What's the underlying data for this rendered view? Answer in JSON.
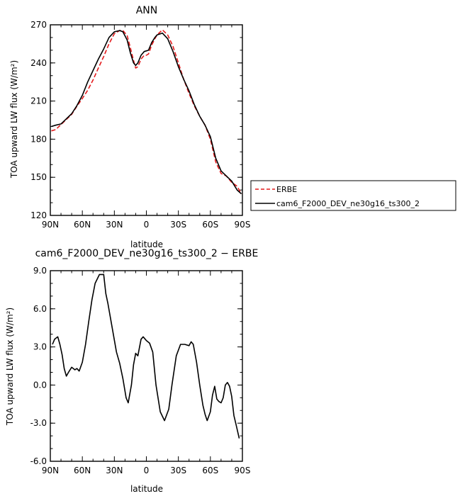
{
  "chart_data": [
    {
      "type": "line",
      "title": "ANN",
      "xlabel": "latitude",
      "ylabel": "TOA upward LW flux (W/m²)",
      "xlim": [
        90,
        -90
      ],
      "ylim": [
        120,
        270
      ],
      "xticks": [
        90,
        60,
        30,
        0,
        -30,
        -60,
        -90
      ],
      "xtick_labels": [
        "90N",
        "60N",
        "30N",
        "0",
        "30S",
        "60S",
        "90S"
      ],
      "yticks": [
        120,
        150,
        180,
        210,
        240,
        270
      ],
      "ytick_labels": [
        "120",
        "150",
        "180",
        "210",
        "240",
        "270"
      ],
      "grid": false,
      "legend_position": "right",
      "series": [
        {
          "name": "ERBE",
          "color": "#e41a1c",
          "dashed": true,
          "x": [
            89,
            85,
            80,
            75,
            70,
            65,
            60,
            55,
            50,
            45,
            40,
            35,
            30,
            25,
            22,
            18,
            15,
            12,
            10,
            8,
            5,
            2,
            0,
            -2,
            -5,
            -8,
            -10,
            -15,
            -20,
            -25,
            -30,
            -35,
            -40,
            -45,
            -50,
            -55,
            -60,
            -65,
            -70,
            -75,
            -80,
            -85,
            -89
          ],
          "y": [
            186.5,
            187.5,
            191.5,
            195.5,
            199.5,
            206,
            212,
            218.5,
            226.5,
            236,
            245,
            255,
            263,
            265.5,
            265.5,
            261.5,
            252,
            242,
            236,
            237,
            243,
            246,
            246,
            247,
            254,
            259,
            262,
            266,
            262,
            253,
            240,
            227,
            216,
            206,
            198,
            191,
            180,
            162,
            153,
            151,
            146,
            143,
            137
          ]
        },
        {
          "name": "cam6_F2000_DEV_ne30g16_ts300_2",
          "color": "#000000",
          "dashed": false,
          "x": [
            89,
            85,
            80,
            75,
            70,
            65,
            60,
            55,
            50,
            45,
            40,
            35,
            30,
            25,
            22,
            18,
            15,
            12,
            10,
            8,
            5,
            2,
            0,
            -2,
            -5,
            -8,
            -10,
            -15,
            -20,
            -25,
            -30,
            -35,
            -40,
            -45,
            -50,
            -55,
            -60,
            -65,
            -70,
            -75,
            -80,
            -85,
            -89
          ],
          "y": [
            190,
            191,
            192,
            196,
            200,
            206.5,
            214.5,
            225,
            234,
            243,
            251,
            260,
            264.5,
            265.5,
            264.5,
            258,
            248,
            240,
            238,
            240,
            246,
            249,
            249.5,
            250,
            256,
            260,
            262,
            263.5,
            259,
            249,
            237,
            227,
            218,
            207,
            198,
            191,
            182,
            165,
            155,
            151,
            147,
            140,
            137
          ]
        }
      ]
    },
    {
      "type": "line",
      "title": "cam6_F2000_DEV_ne30g16_ts300_2 − ERBE",
      "xlabel": "latitude",
      "ylabel": "TOA upward LW flux (W/m²)",
      "xlim": [
        90,
        -90
      ],
      "ylim": [
        -6.0,
        9.0
      ],
      "xticks": [
        90,
        60,
        30,
        0,
        -30,
        -60,
        -90
      ],
      "xtick_labels": [
        "90N",
        "60N",
        "30N",
        "0",
        "30S",
        "60S",
        "90S"
      ],
      "yticks": [
        -6.0,
        -3.0,
        0.0,
        3.0,
        6.0,
        9.0
      ],
      "ytick_labels": [
        "-6.0",
        "-3.0",
        "0.0",
        "3.0",
        "6.0",
        "9.0"
      ],
      "grid": false,
      "series": [
        {
          "color": "#000000",
          "dashed": false,
          "x": [
            88,
            86,
            83,
            81,
            79,
            77,
            75,
            73,
            70,
            67,
            65,
            63,
            60,
            57,
            54,
            51,
            48,
            44,
            40,
            38,
            36,
            32,
            28,
            25,
            22,
            19,
            17,
            14,
            12,
            10,
            8,
            5,
            3,
            0,
            -3,
            -6,
            -9,
            -13,
            -17,
            -21,
            -24,
            -28,
            -32,
            -36,
            -40,
            -42,
            -44,
            -47,
            -50,
            -53,
            -55,
            -57,
            -60,
            -62,
            -64,
            -66,
            -68,
            -70,
            -72,
            -74,
            -76,
            -78,
            -80,
            -82,
            -84,
            -87
          ],
          "y": [
            3.2,
            3.6,
            3.8,
            3.2,
            2.4,
            1.3,
            0.7,
            1.0,
            1.4,
            1.2,
            1.3,
            1.1,
            1.8,
            3.2,
            5.0,
            6.7,
            8.0,
            8.7,
            8.7,
            7.2,
            6.4,
            4.5,
            2.6,
            1.7,
            0.5,
            -1.0,
            -1.4,
            0.0,
            1.6,
            2.5,
            2.3,
            3.6,
            3.8,
            3.5,
            3.3,
            2.6,
            0.0,
            -2.1,
            -2.8,
            -1.9,
            0.0,
            2.3,
            3.2,
            3.2,
            3.1,
            3.4,
            3.2,
            1.8,
            0.0,
            -1.6,
            -2.3,
            -2.8,
            -2.1,
            -0.8,
            -0.1,
            -1.1,
            -1.3,
            -1.4,
            -1.0,
            0.0,
            0.2,
            -0.1,
            -0.9,
            -2.4,
            -3.1,
            -4.2
          ]
        }
      ]
    }
  ]
}
